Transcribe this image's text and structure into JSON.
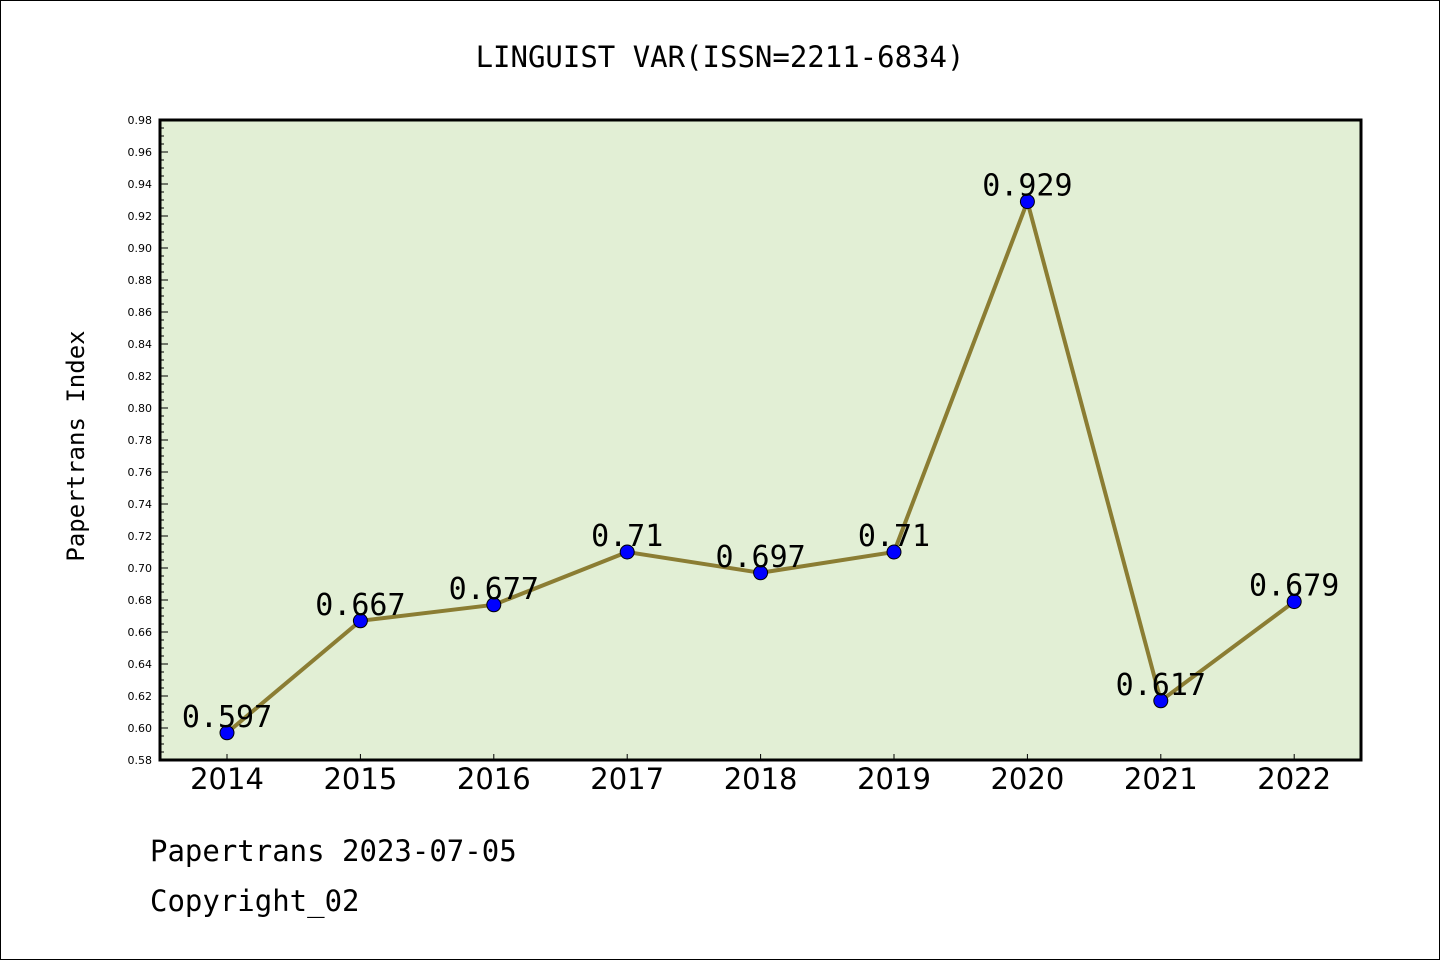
{
  "chart_data": {
    "type": "line",
    "title": "LINGUIST VAR(ISSN=2211-6834)",
    "xlabel": "",
    "ylabel": "Papertrans Index",
    "categories": [
      "2014",
      "2015",
      "2016",
      "2017",
      "2018",
      "2019",
      "2020",
      "2021",
      "2022"
    ],
    "values": [
      0.597,
      0.667,
      0.677,
      0.71,
      0.697,
      0.71,
      0.929,
      0.617,
      0.679
    ],
    "data_labels": [
      "0.597",
      "0.667",
      "0.677",
      "0.71",
      "0.697",
      "0.71",
      "0.929",
      "0.617",
      "0.679"
    ],
    "ylim": [
      0.58,
      0.98
    ],
    "yticks": [
      "0.58",
      "0.60",
      "0.62",
      "0.64",
      "0.66",
      "0.68",
      "0.70",
      "0.72",
      "0.74",
      "0.76",
      "0.78",
      "0.80",
      "0.82",
      "0.84",
      "0.86",
      "0.88",
      "0.90",
      "0.92",
      "0.94",
      "0.96",
      "0.98"
    ],
    "grid": false,
    "colors": {
      "plot_background": "#e2efd5",
      "line": "#8b7d33",
      "marker": "#0000ff"
    }
  },
  "footer": {
    "line1": "Papertrans 2023-07-05",
    "line2": "Copyright_02"
  }
}
